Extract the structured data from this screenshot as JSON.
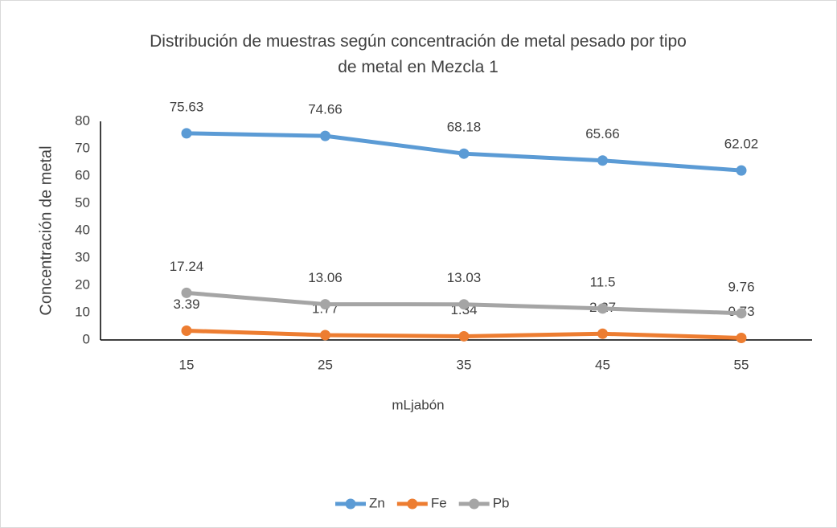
{
  "chart_data": {
    "type": "line",
    "title": "Distribución de muestras según concentración de metal pesado por tipo de metal en Mezcla 1",
    "x_label": "mLjabón",
    "y_label": "Concentración  de metal",
    "categories": [
      "15",
      "25",
      "35",
      "45",
      "55"
    ],
    "series": [
      {
        "name": "Zn",
        "color": "#5b9bd5",
        "values": [
          75.63,
          74.66,
          68.18,
          65.66,
          62.02
        ]
      },
      {
        "name": "Fe",
        "color": "#ed7d31",
        "values": [
          3.39,
          1.77,
          1.34,
          2.27,
          0.73
        ]
      },
      {
        "name": "Pb",
        "color": "#a5a5a5",
        "values": [
          17.24,
          13.06,
          13.03,
          11.5,
          9.76
        ]
      }
    ],
    "ylim": [
      0,
      80
    ],
    "yticks": [
      0,
      10,
      20,
      30,
      40,
      50,
      60,
      70,
      80
    ],
    "grid": false,
    "legend": "bottom"
  }
}
